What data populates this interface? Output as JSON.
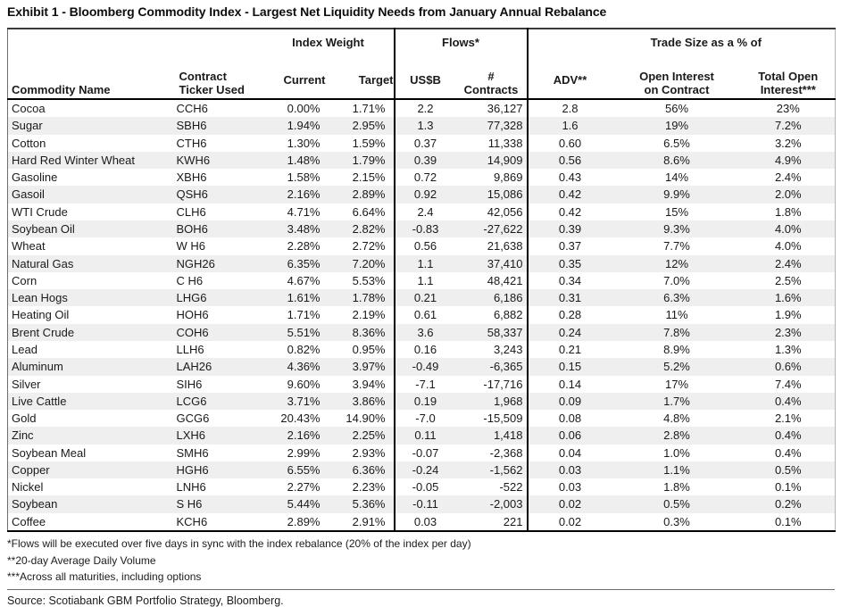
{
  "title": "Exhibit 1 - Bloomberg Commodity Index - Largest Net Liquidity Needs from January Annual Rebalance",
  "colors": {
    "row_stripe": "#efefef",
    "divider_line": "#000000",
    "rule_line": "#707070",
    "text": "#1a1a1a"
  },
  "table": {
    "group_headers": {
      "index_weight": "Index Weight",
      "flows": "Flows*",
      "trade_size": "Trade Size as a % of"
    },
    "headers": {
      "commodity": "Commodity Name",
      "ticker_l1": "Contract",
      "ticker_l2": "Ticker Used",
      "current": "Current",
      "target": "Target",
      "usdb": "US$B",
      "contracts_l1": "#",
      "contracts_l2": "Contracts",
      "adv": "ADV**",
      "oi_l1": "Open Interest",
      "oi_l2": "on Contract",
      "toi_l1": "Total Open",
      "toi_l2": "Interest***"
    },
    "rows": [
      [
        "Cocoa",
        "CCH6",
        "0.00%",
        "1.71%",
        "2.2",
        "36,127",
        "2.8",
        "56%",
        "23%"
      ],
      [
        "Sugar",
        "SBH6",
        "1.94%",
        "2.95%",
        "1.3",
        "77,328",
        "1.6",
        "19%",
        "7.2%"
      ],
      [
        "Cotton",
        "CTH6",
        "1.30%",
        "1.59%",
        "0.37",
        "11,338",
        "0.60",
        "6.5%",
        "3.2%"
      ],
      [
        "Hard Red Winter Wheat",
        "KWH6",
        "1.48%",
        "1.79%",
        "0.39",
        "14,909",
        "0.56",
        "8.6%",
        "4.9%"
      ],
      [
        "Gasoline",
        "XBH6",
        "1.58%",
        "2.15%",
        "0.72",
        "9,869",
        "0.43",
        "14%",
        "2.4%"
      ],
      [
        "Gasoil",
        "QSH6",
        "2.16%",
        "2.89%",
        "0.92",
        "15,086",
        "0.42",
        "9.9%",
        "2.0%"
      ],
      [
        "WTI Crude",
        "CLH6",
        "4.71%",
        "6.64%",
        "2.4",
        "42,056",
        "0.42",
        "15%",
        "1.8%"
      ],
      [
        "Soybean Oil",
        "BOH6",
        "3.48%",
        "2.82%",
        "-0.83",
        "-27,622",
        "0.39",
        "9.3%",
        "4.0%"
      ],
      [
        "Wheat",
        "W H6",
        "2.28%",
        "2.72%",
        "0.56",
        "21,638",
        "0.37",
        "7.7%",
        "4.0%"
      ],
      [
        "Natural Gas",
        "NGH26",
        "6.35%",
        "7.20%",
        "1.1",
        "37,410",
        "0.35",
        "12%",
        "2.4%"
      ],
      [
        "Corn",
        "C H6",
        "4.67%",
        "5.53%",
        "1.1",
        "48,421",
        "0.34",
        "7.0%",
        "2.5%"
      ],
      [
        "Lean Hogs",
        "LHG6",
        "1.61%",
        "1.78%",
        "0.21",
        "6,186",
        "0.31",
        "6.3%",
        "1.6%"
      ],
      [
        "Heating Oil",
        "HOH6",
        "1.71%",
        "2.19%",
        "0.61",
        "6,882",
        "0.28",
        "11%",
        "1.9%"
      ],
      [
        "Brent Crude",
        "COH6",
        "5.51%",
        "8.36%",
        "3.6",
        "58,337",
        "0.24",
        "7.8%",
        "2.3%"
      ],
      [
        "Lead",
        "LLH6",
        "0.82%",
        "0.95%",
        "0.16",
        "3,243",
        "0.21",
        "8.9%",
        "1.3%"
      ],
      [
        "Aluminum",
        "LAH26",
        "4.36%",
        "3.97%",
        "-0.49",
        "-6,365",
        "0.15",
        "5.2%",
        "0.6%"
      ],
      [
        "Silver",
        "SIH6",
        "9.60%",
        "3.94%",
        "-7.1",
        "-17,716",
        "0.14",
        "17%",
        "7.4%"
      ],
      [
        "Live Cattle",
        "LCG6",
        "3.71%",
        "3.86%",
        "0.19",
        "1,968",
        "0.09",
        "1.7%",
        "0.4%"
      ],
      [
        "Gold",
        "GCG6",
        "20.43%",
        "14.90%",
        "-7.0",
        "-15,509",
        "0.08",
        "4.8%",
        "2.1%"
      ],
      [
        "Zinc",
        "LXH6",
        "2.16%",
        "2.25%",
        "0.11",
        "1,418",
        "0.06",
        "2.8%",
        "0.4%"
      ],
      [
        "Soybean Meal",
        "SMH6",
        "2.99%",
        "2.93%",
        "-0.07",
        "-2,368",
        "0.04",
        "1.0%",
        "0.4%"
      ],
      [
        "Copper",
        "HGH6",
        "6.55%",
        "6.36%",
        "-0.24",
        "-1,562",
        "0.03",
        "1.1%",
        "0.5%"
      ],
      [
        "Nickel",
        "LNH6",
        "2.27%",
        "2.23%",
        "-0.05",
        "-522",
        "0.03",
        "1.8%",
        "0.1%"
      ],
      [
        "Soybean",
        "S H6",
        "5.44%",
        "5.36%",
        "-0.11",
        "-2,003",
        "0.02",
        "0.5%",
        "0.2%"
      ],
      [
        "Coffee",
        "KCH6",
        "2.89%",
        "2.91%",
        "0.03",
        "221",
        "0.02",
        "0.3%",
        "0.1%"
      ]
    ]
  },
  "footnotes": [
    "*Flows will be executed over five days in sync with the index rebalance (20% of the index per day)",
    "**20-day Average Daily Volume",
    "***Across all maturities, including options"
  ],
  "source": "Source: Scotiabank GBM Portfolio Strategy, Bloomberg."
}
